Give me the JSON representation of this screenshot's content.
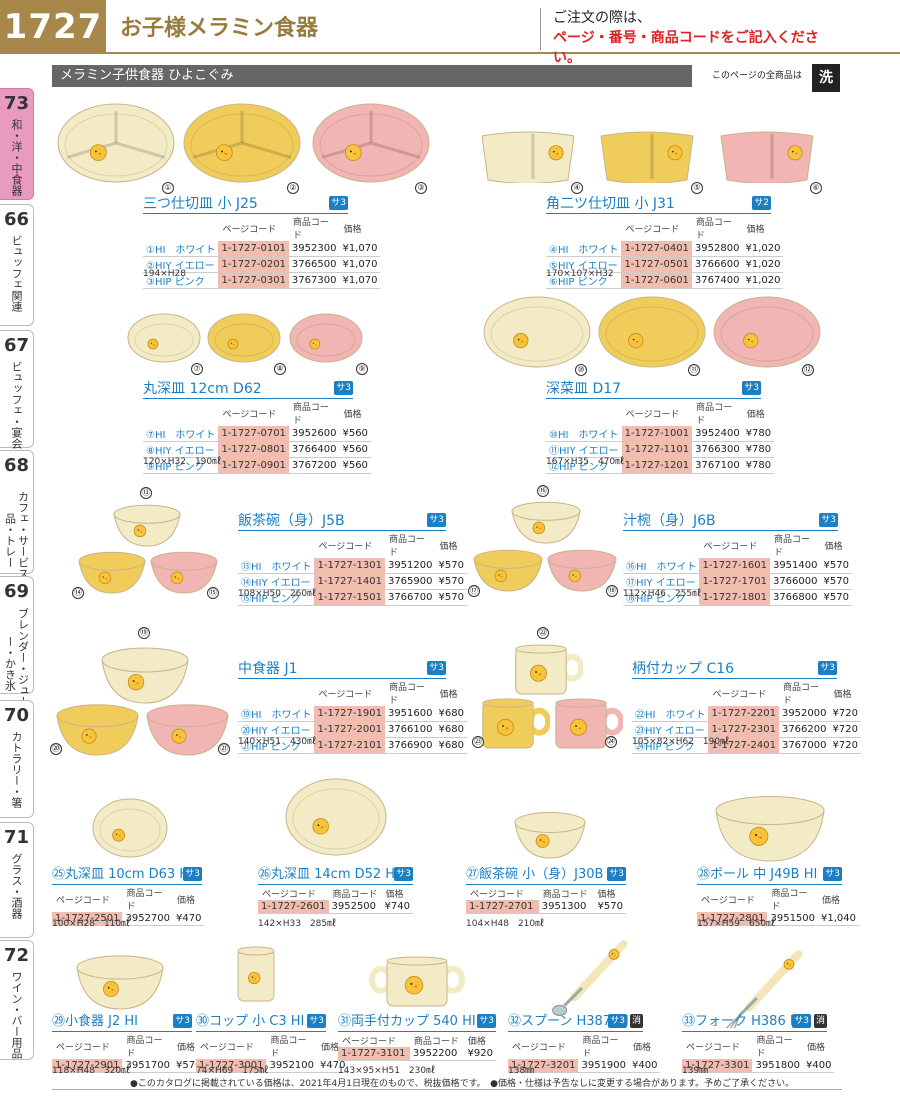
{
  "header": {
    "page_number": "1727",
    "title": "お子様メラミン食器",
    "notice_line1": "ご注文の際は、",
    "notice_line2": "ページ・番号・商品コードをご記入ください。"
  },
  "tabs": [
    {
      "num": "73",
      "label": "和・洋・中食器"
    },
    {
      "num": "66",
      "label": "ビュッフェ関連"
    },
    {
      "num": "67",
      "label": "ビュッフェ・宴会"
    },
    {
      "num": "68",
      "label": "カフェ・サービス用品・トレー"
    },
    {
      "num": "69",
      "label": "ブレンダー・ジューサー・かき氷"
    },
    {
      "num": "70",
      "label": "カトラリー・箸"
    },
    {
      "num": "71",
      "label": "グラス・酒器"
    },
    {
      "num": "72",
      "label": "ワイン・バー用品"
    }
  ],
  "section": {
    "title": "メラミン子供食器 ひよこぐみ",
    "note": "このページの全商品は",
    "wash_icon": "洗"
  },
  "table_headers": {
    "page_code": "ページコード",
    "product_code": "商品コード",
    "price": "価格"
  },
  "products": [
    {
      "id": "p1",
      "title": "三つ仕切皿 小 J25",
      "badge": "サ3",
      "rows": [
        [
          "①HI　ホワイト",
          "1-1727-0101",
          "3952300",
          "¥1,070"
        ],
        [
          "②HIY イエロー",
          "1-1727-0201",
          "3766500",
          "¥1,070"
        ],
        [
          "③HIP ピンク",
          "1-1727-0301",
          "3767300",
          "¥1,070"
        ]
      ],
      "dim": "194×H28",
      "nums": [
        "①",
        "②",
        "③"
      ]
    },
    {
      "id": "p2",
      "title": "角二ツ仕切皿 小 J31",
      "badge": "サ2",
      "rows": [
        [
          "④HI　ホワイト",
          "1-1727-0401",
          "3952800",
          "¥1,020"
        ],
        [
          "⑤HIY イエロー",
          "1-1727-0501",
          "3766600",
          "¥1,020"
        ],
        [
          "⑥HIP ピンク",
          "1-1727-0601",
          "3767400",
          "¥1,020"
        ]
      ],
      "dim": "170×107×H32",
      "nums": [
        "④",
        "⑤",
        "⑥"
      ]
    },
    {
      "id": "p3",
      "title": "丸深皿 12cm D62",
      "badge": "サ3",
      "rows": [
        [
          "⑦HI　ホワイト",
          "1-1727-0701",
          "3952600",
          "¥560"
        ],
        [
          "⑧HIY イエロー",
          "1-1727-0801",
          "3766400",
          "¥560"
        ],
        [
          "⑨HIP ピンク",
          "1-1727-0901",
          "3767200",
          "¥560"
        ]
      ],
      "dim": "120×H32　190㎖",
      "nums": [
        "⑦",
        "⑧",
        "⑨"
      ]
    },
    {
      "id": "p4",
      "title": "深菜皿 D17",
      "badge": "サ3",
      "rows": [
        [
          "⑩HI　ホワイト",
          "1-1727-1001",
          "3952400",
          "¥780"
        ],
        [
          "⑪HIY イエロー",
          "1-1727-1101",
          "3766300",
          "¥780"
        ],
        [
          "⑫HIP ピンク",
          "1-1727-1201",
          "3767100",
          "¥780"
        ]
      ],
      "dim": "167×H35　470㎖",
      "nums": [
        "⑩",
        "⑪",
        "⑫"
      ]
    },
    {
      "id": "p5",
      "title": "飯茶碗（身）J5B",
      "badge": "サ3",
      "rows": [
        [
          "⑬HI　ホワイト",
          "1-1727-1301",
          "3951200",
          "¥570"
        ],
        [
          "⑭HIY イエロー",
          "1-1727-1401",
          "3765900",
          "¥570"
        ],
        [
          "⑮HIP ピンク",
          "1-1727-1501",
          "3766700",
          "¥570"
        ]
      ],
      "dim": "108×H50　260㎖",
      "nums": [
        "⑬",
        "⑭",
        "⑮"
      ]
    },
    {
      "id": "p6",
      "title": "汁椀（身）J6B",
      "badge": "サ3",
      "rows": [
        [
          "⑯HI　ホワイト",
          "1-1727-1601",
          "3951400",
          "¥570"
        ],
        [
          "⑰HIY イエロー",
          "1-1727-1701",
          "3766000",
          "¥570"
        ],
        [
          "⑱HIP ピンク",
          "1-1727-1801",
          "3766800",
          "¥570"
        ]
      ],
      "dim": "112×H46　255㎖",
      "nums": [
        "⑯",
        "⑰",
        "⑱"
      ]
    },
    {
      "id": "p7",
      "title": "中食器 J1",
      "badge": "サ3",
      "rows": [
        [
          "⑲HI　ホワイト",
          "1-1727-1901",
          "3951600",
          "¥680"
        ],
        [
          "⑳HIY イエロー",
          "1-1727-2001",
          "3766100",
          "¥680"
        ],
        [
          "㉑HIP ピンク",
          "1-1727-2101",
          "3766900",
          "¥680"
        ]
      ],
      "dim": "140×H51　430㎖",
      "nums": [
        "⑲",
        "⑳",
        "㉑"
      ]
    },
    {
      "id": "p8",
      "title": "柄付カップ C16",
      "badge": "サ3",
      "rows": [
        [
          "㉒HI　ホワイト",
          "1-1727-2201",
          "3952000",
          "¥720"
        ],
        [
          "㉓HIY イエロー",
          "1-1727-2301",
          "3766200",
          "¥720"
        ],
        [
          "㉔HIP ピンク",
          "1-1727-2401",
          "3767000",
          "¥720"
        ]
      ],
      "dim": "105×82×H62　190㎖",
      "nums": [
        "㉒",
        "㉓",
        "㉔"
      ]
    }
  ],
  "singles": [
    {
      "id": "s25",
      "title": "㉕丸深皿 10cm D63 HI",
      "badge": "サ3",
      "code": "1-1727-2501",
      "pcode": "3952700",
      "price": "¥470",
      "dim": "100×H28　110㎖"
    },
    {
      "id": "s26",
      "title": "㉖丸深皿 14cm D52 HI",
      "badge": "サ3",
      "code": "1-1727-2601",
      "pcode": "3952500",
      "price": "¥740",
      "dim": "142×H33　285㎖"
    },
    {
      "id": "s27",
      "title": "㉗飯茶碗 小（身）J30B HI",
      "badge": "サ3",
      "code": "1-1727-2701",
      "pcode": "3951300",
      "price": "¥570",
      "dim": "104×H48　210㎖"
    },
    {
      "id": "s28",
      "title": "㉘ボール 中 J49B HI",
      "badge": "サ3",
      "code": "1-1727-2801",
      "pcode": "3951500",
      "price": "¥1,040",
      "dim": "157×H59　650㎖"
    },
    {
      "id": "s29",
      "title": "㉙小食器 J2 HI",
      "badge": "サ3",
      "code": "1-1727-2901",
      "pcode": "3951700",
      "price": "¥570",
      "dim": "118×H48　320㎖"
    },
    {
      "id": "s30",
      "title": "㉚コップ 小 C3 HI",
      "badge": "サ3",
      "code": "1-1727-3001",
      "pcode": "3952100",
      "price": "¥470",
      "dim": "74×H69　175㎖"
    },
    {
      "id": "s31",
      "title": "㉛両手付カップ 540 HI",
      "badge": "サ3",
      "code": "1-1727-3101",
      "pcode": "3952200",
      "price": "¥920",
      "dim": "143×95×H51　230㎖"
    },
    {
      "id": "s32",
      "title": "㉜スプーン H387 HI",
      "badge": "サ3",
      "badge2": "消",
      "code": "1-1727-3201",
      "pcode": "3951900",
      "price": "¥400",
      "dim": "138㎜"
    },
    {
      "id": "s33",
      "title": "㉝フォーク H386 HI",
      "badge": "サ3",
      "badge2": "消",
      "code": "1-1727-3301",
      "pcode": "3951800",
      "price": "¥400",
      "dim": "139㎜"
    }
  ],
  "footer": "●このカタログに掲載されている価格は、2021年4月1日現在のもので、税抜価格です。　●価格・仕様は予告なしに変更する場合があります。予めご了承ください。",
  "colors": {
    "white": "#f3ebc6",
    "yellow": "#f0cd5a",
    "pink": "#f1b5b3",
    "accent": "#1b7fc4",
    "brand": "#a8884a"
  }
}
